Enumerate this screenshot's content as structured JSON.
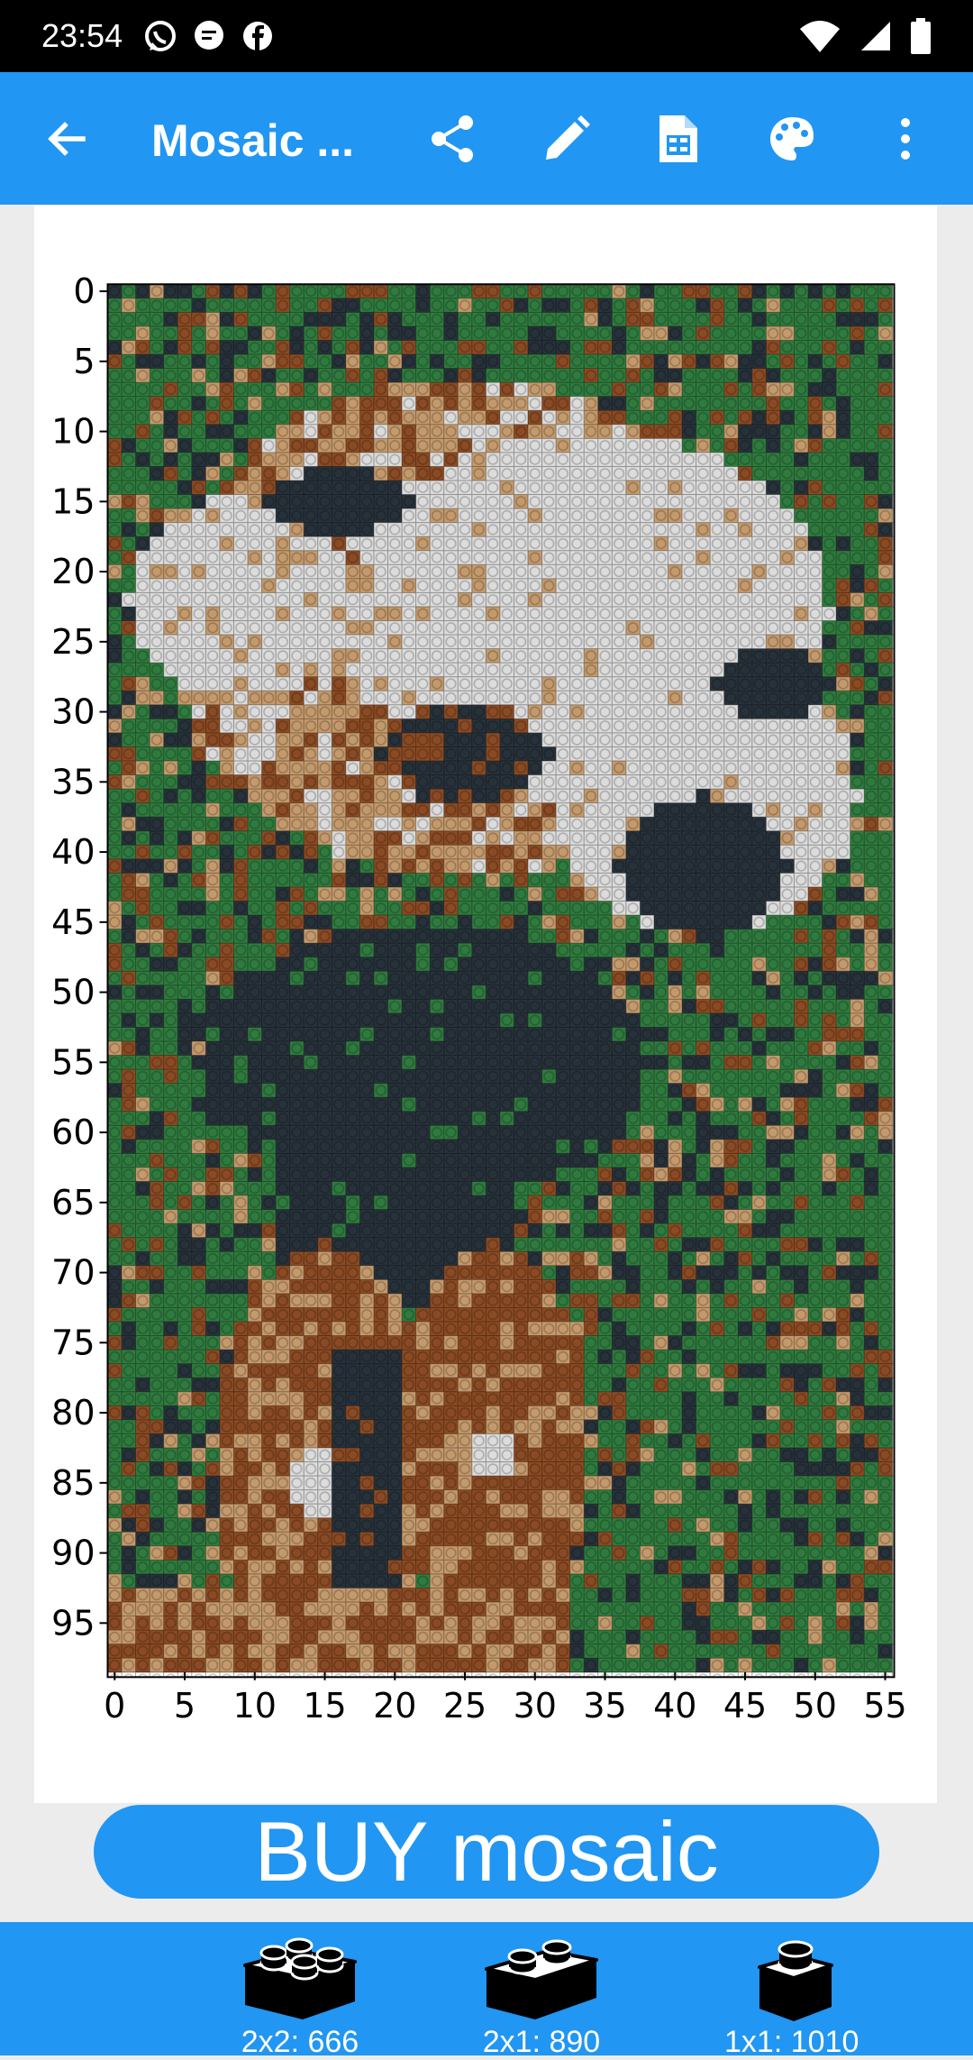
{
  "status_bar": {
    "time": "23:54",
    "left_icons": [
      "whatsapp-icon",
      "message-icon",
      "facebook-icon"
    ],
    "right_icons": [
      "wifi-icon",
      "signal-icon",
      "battery-icon"
    ]
  },
  "app_bar": {
    "title": "Mosaic ...",
    "background": "#2196f3",
    "actions": [
      "back-arrow-icon",
      "share-icon",
      "edit-pencil-icon",
      "spreadsheet-icon",
      "palette-icon",
      "more-vert-icon"
    ]
  },
  "mosaic_plot": {
    "y_ticks": [
      "0",
      "5",
      "10",
      "15",
      "20",
      "25",
      "30",
      "35",
      "40",
      "45",
      "50",
      "55",
      "60",
      "65",
      "70",
      "75",
      "80",
      "85",
      "90",
      "95"
    ],
    "x_ticks": [
      "0",
      "5",
      "10",
      "15",
      "20",
      "25",
      "30",
      "35",
      "40",
      "45",
      "50",
      "55"
    ],
    "palette": {
      "green": "#2f7a3e",
      "dark": "#27313a",
      "brown": "#8a4a23",
      "tan": "#c49a6c",
      "light": "#dcdcdc"
    }
  },
  "buy_button": {
    "label": "BUY mosaic"
  },
  "brick_counts": [
    {
      "label": "2x2: 666",
      "icon": "brick-2x2-icon"
    },
    {
      "label": "2x1: 890",
      "icon": "brick-2x1-icon"
    },
    {
      "label": "1x1: 1010",
      "icon": "brick-1x1-icon"
    }
  ]
}
